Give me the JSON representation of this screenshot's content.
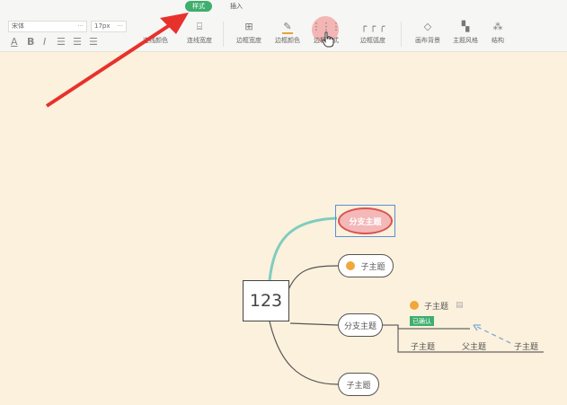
{
  "toolbar": {
    "tabs": [
      {
        "label": "样式",
        "active": true
      },
      {
        "label": "插入",
        "active": false
      }
    ],
    "font_family": "宋体",
    "font_size": "17px",
    "format_buttons": [
      "A",
      "B",
      "I"
    ],
    "tools": [
      {
        "label": "连线颜色",
        "icon": "line-color-icon"
      },
      {
        "label": "连线宽度",
        "icon": "line-width-icon"
      },
      {
        "label": "边框宽度",
        "icon": "border-width-icon"
      },
      {
        "label": "边框颜色",
        "icon": "border-color-icon"
      },
      {
        "label": "边框样式",
        "icon": "border-style-icon"
      },
      {
        "label": "边框弧度",
        "icon": "border-radius-icon"
      },
      {
        "label": "画布背景",
        "icon": "canvas-background-icon"
      },
      {
        "label": "主题风格",
        "icon": "theme-style-icon"
      },
      {
        "label": "结构",
        "icon": "structure-icon"
      }
    ]
  },
  "mindmap": {
    "root": "123",
    "selected_branch": "分支主题",
    "child1": "子主题",
    "branch2": "分支主题",
    "child2": "子主题",
    "sub_child": "子主题",
    "badge": "已确认",
    "tree_labels": [
      "子主题",
      "父主题",
      "子主题"
    ]
  },
  "colors": {
    "accent": "#3fae6e",
    "canvas": "#fcf1dc",
    "selected_fill": "#f4b8b8",
    "arrow": "#e8312c"
  }
}
